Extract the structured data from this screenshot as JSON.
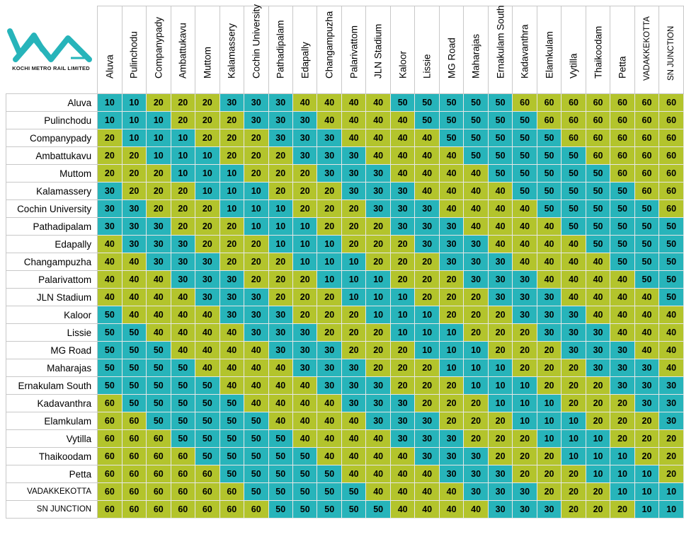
{
  "logo": {
    "text": "KOCHI METRO RAIL LIMITED",
    "icon": "kmrl-logo-icon"
  },
  "stations": [
    "Aluva",
    "Pulinchodu",
    "Companypady",
    "Ambattukavu",
    "Muttom",
    "Kalamassery",
    "Cochin University",
    "Pathadipalam",
    "Edapally",
    "Changampuzha",
    "Palarivattom",
    "JLN Stadium",
    "Kaloor",
    "Lissie",
    "MG Road",
    "Maharajas",
    "Ernakulam South",
    "Kadavanthra",
    "Elamkulam",
    "Vytilla",
    "Thaikoodam",
    "Petta",
    "VADAKKEKOTTA",
    "SN JUNCTION"
  ],
  "colors": {
    "teal": "#27b4ba",
    "green": "#b3c42c"
  },
  "fares": [
    [
      10,
      10,
      20,
      20,
      20,
      30,
      30,
      30,
      40,
      40,
      40,
      40,
      50,
      50,
      50,
      50,
      50,
      60,
      60,
      60,
      60,
      60,
      60,
      60
    ],
    [
      10,
      10,
      10,
      20,
      20,
      20,
      30,
      30,
      30,
      40,
      40,
      40,
      40,
      50,
      50,
      50,
      50,
      50,
      60,
      60,
      60,
      60,
      60,
      60
    ],
    [
      20,
      10,
      10,
      10,
      20,
      20,
      20,
      30,
      30,
      30,
      40,
      40,
      40,
      40,
      50,
      50,
      50,
      50,
      50,
      60,
      60,
      60,
      60,
      60
    ],
    [
      20,
      20,
      10,
      10,
      10,
      20,
      20,
      20,
      30,
      30,
      30,
      40,
      40,
      40,
      40,
      50,
      50,
      50,
      50,
      50,
      60,
      60,
      60,
      60
    ],
    [
      20,
      20,
      20,
      10,
      10,
      10,
      20,
      20,
      20,
      30,
      30,
      30,
      40,
      40,
      40,
      40,
      50,
      50,
      50,
      50,
      50,
      60,
      60,
      60
    ],
    [
      30,
      20,
      20,
      20,
      10,
      10,
      10,
      20,
      20,
      20,
      30,
      30,
      30,
      40,
      40,
      40,
      40,
      50,
      50,
      50,
      50,
      50,
      60,
      60
    ],
    [
      30,
      30,
      20,
      20,
      20,
      10,
      10,
      10,
      20,
      20,
      20,
      30,
      30,
      30,
      40,
      40,
      40,
      40,
      50,
      50,
      50,
      50,
      50,
      60
    ],
    [
      30,
      30,
      30,
      20,
      20,
      20,
      10,
      10,
      10,
      20,
      20,
      20,
      30,
      30,
      30,
      40,
      40,
      40,
      40,
      50,
      50,
      50,
      50,
      50
    ],
    [
      40,
      30,
      30,
      30,
      20,
      20,
      20,
      10,
      10,
      10,
      20,
      20,
      20,
      30,
      30,
      30,
      40,
      40,
      40,
      40,
      50,
      50,
      50,
      50
    ],
    [
      40,
      40,
      30,
      30,
      30,
      20,
      20,
      20,
      10,
      10,
      10,
      20,
      20,
      20,
      30,
      30,
      30,
      40,
      40,
      40,
      40,
      50,
      50,
      50
    ],
    [
      40,
      40,
      40,
      30,
      30,
      30,
      20,
      20,
      20,
      10,
      10,
      10,
      20,
      20,
      20,
      30,
      30,
      30,
      40,
      40,
      40,
      40,
      50,
      50
    ],
    [
      40,
      40,
      40,
      40,
      30,
      30,
      30,
      20,
      20,
      20,
      10,
      10,
      10,
      20,
      20,
      20,
      30,
      30,
      30,
      40,
      40,
      40,
      40,
      50
    ],
    [
      50,
      40,
      40,
      40,
      40,
      30,
      30,
      30,
      20,
      20,
      20,
      10,
      10,
      10,
      20,
      20,
      20,
      30,
      30,
      30,
      40,
      40,
      40,
      40
    ],
    [
      50,
      50,
      40,
      40,
      40,
      40,
      30,
      30,
      30,
      20,
      20,
      20,
      10,
      10,
      10,
      20,
      20,
      20,
      30,
      30,
      30,
      40,
      40,
      40
    ],
    [
      50,
      50,
      50,
      40,
      40,
      40,
      40,
      30,
      30,
      30,
      20,
      20,
      20,
      10,
      10,
      10,
      20,
      20,
      20,
      30,
      30,
      30,
      40,
      40
    ],
    [
      50,
      50,
      50,
      50,
      40,
      40,
      40,
      40,
      30,
      30,
      30,
      20,
      20,
      20,
      10,
      10,
      10,
      20,
      20,
      20,
      30,
      30,
      30,
      40
    ],
    [
      50,
      50,
      50,
      50,
      50,
      40,
      40,
      40,
      40,
      30,
      30,
      30,
      20,
      20,
      20,
      10,
      10,
      10,
      20,
      20,
      20,
      30,
      30,
      30
    ],
    [
      60,
      50,
      50,
      50,
      50,
      50,
      40,
      40,
      40,
      40,
      30,
      30,
      30,
      20,
      20,
      20,
      10,
      10,
      10,
      20,
      20,
      20,
      30,
      30
    ],
    [
      60,
      60,
      50,
      50,
      50,
      50,
      50,
      40,
      40,
      40,
      40,
      30,
      30,
      30,
      20,
      20,
      20,
      10,
      10,
      10,
      20,
      20,
      20,
      30
    ],
    [
      60,
      60,
      60,
      50,
      50,
      50,
      50,
      50,
      40,
      40,
      40,
      40,
      30,
      30,
      30,
      20,
      20,
      20,
      10,
      10,
      10,
      20,
      20,
      20
    ],
    [
      60,
      60,
      60,
      60,
      50,
      50,
      50,
      50,
      50,
      40,
      40,
      40,
      40,
      30,
      30,
      30,
      20,
      20,
      20,
      10,
      10,
      10,
      20,
      20
    ],
    [
      60,
      60,
      60,
      60,
      60,
      50,
      50,
      50,
      50,
      50,
      40,
      40,
      40,
      40,
      30,
      30,
      30,
      20,
      20,
      20,
      10,
      10,
      10,
      20
    ],
    [
      60,
      60,
      60,
      60,
      60,
      60,
      50,
      50,
      50,
      50,
      50,
      40,
      40,
      40,
      40,
      30,
      30,
      30,
      20,
      20,
      20,
      10,
      10,
      10
    ],
    [
      60,
      60,
      60,
      60,
      60,
      60,
      60,
      50,
      50,
      50,
      50,
      50,
      40,
      40,
      40,
      40,
      30,
      30,
      30,
      20,
      20,
      20,
      10,
      10
    ]
  ]
}
